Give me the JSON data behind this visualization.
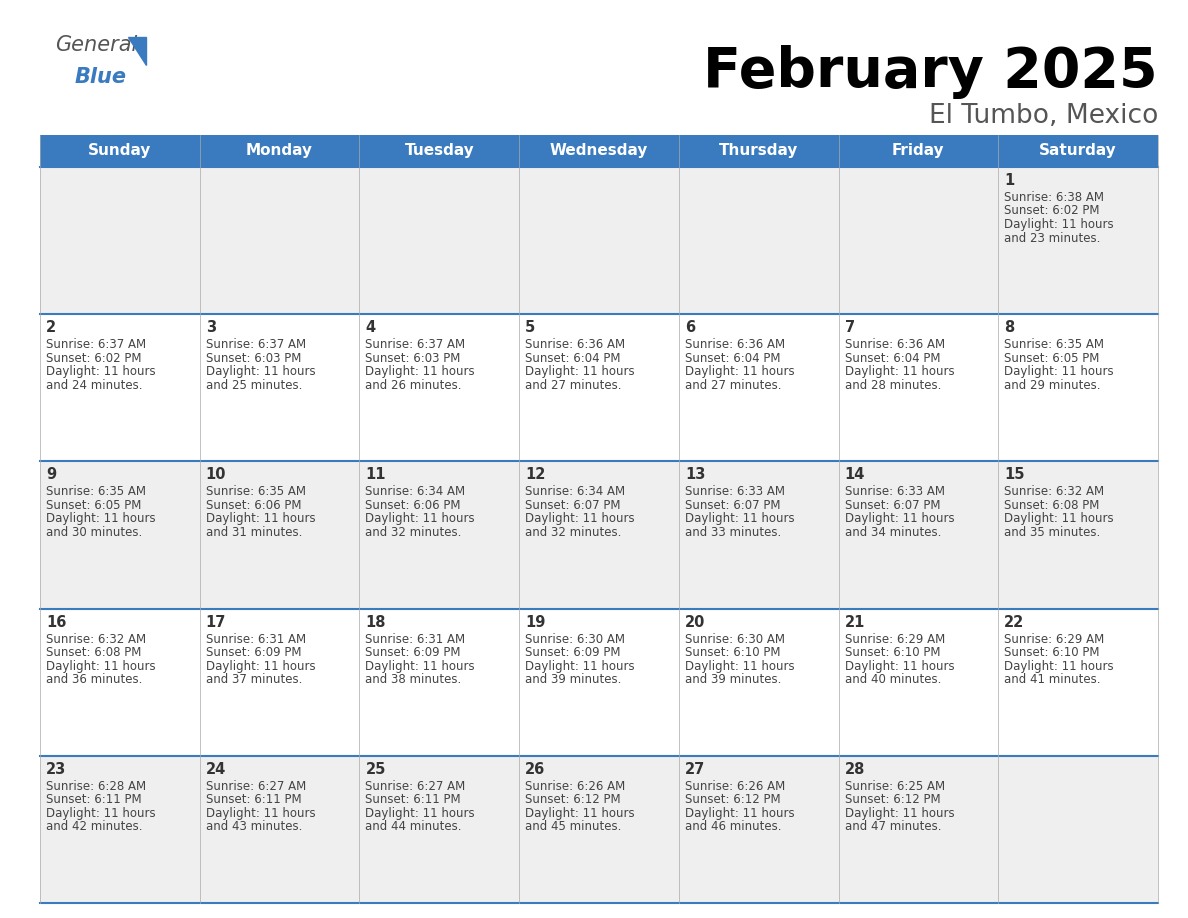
{
  "title": "February 2025",
  "subtitle": "El Tumbo, Mexico",
  "header_bg_color": "#3a7bbf",
  "header_text_color": "#ffffff",
  "day_names": [
    "Sunday",
    "Monday",
    "Tuesday",
    "Wednesday",
    "Thursday",
    "Friday",
    "Saturday"
  ],
  "row_bg_odd": "#efefef",
  "row_bg_even": "#ffffff",
  "border_color": "#3a7bbf",
  "text_color": "#444444",
  "day_num_color": "#333333",
  "days": [
    {
      "day": 1,
      "col": 6,
      "row": 0,
      "sunrise": "6:38 AM",
      "sunset": "6:02 PM",
      "daylight_hours": 11,
      "daylight_minutes": 23
    },
    {
      "day": 2,
      "col": 0,
      "row": 1,
      "sunrise": "6:37 AM",
      "sunset": "6:02 PM",
      "daylight_hours": 11,
      "daylight_minutes": 24
    },
    {
      "day": 3,
      "col": 1,
      "row": 1,
      "sunrise": "6:37 AM",
      "sunset": "6:03 PM",
      "daylight_hours": 11,
      "daylight_minutes": 25
    },
    {
      "day": 4,
      "col": 2,
      "row": 1,
      "sunrise": "6:37 AM",
      "sunset": "6:03 PM",
      "daylight_hours": 11,
      "daylight_minutes": 26
    },
    {
      "day": 5,
      "col": 3,
      "row": 1,
      "sunrise": "6:36 AM",
      "sunset": "6:04 PM",
      "daylight_hours": 11,
      "daylight_minutes": 27
    },
    {
      "day": 6,
      "col": 4,
      "row": 1,
      "sunrise": "6:36 AM",
      "sunset": "6:04 PM",
      "daylight_hours": 11,
      "daylight_minutes": 27
    },
    {
      "day": 7,
      "col": 5,
      "row": 1,
      "sunrise": "6:36 AM",
      "sunset": "6:04 PM",
      "daylight_hours": 11,
      "daylight_minutes": 28
    },
    {
      "day": 8,
      "col": 6,
      "row": 1,
      "sunrise": "6:35 AM",
      "sunset": "6:05 PM",
      "daylight_hours": 11,
      "daylight_minutes": 29
    },
    {
      "day": 9,
      "col": 0,
      "row": 2,
      "sunrise": "6:35 AM",
      "sunset": "6:05 PM",
      "daylight_hours": 11,
      "daylight_minutes": 30
    },
    {
      "day": 10,
      "col": 1,
      "row": 2,
      "sunrise": "6:35 AM",
      "sunset": "6:06 PM",
      "daylight_hours": 11,
      "daylight_minutes": 31
    },
    {
      "day": 11,
      "col": 2,
      "row": 2,
      "sunrise": "6:34 AM",
      "sunset": "6:06 PM",
      "daylight_hours": 11,
      "daylight_minutes": 32
    },
    {
      "day": 12,
      "col": 3,
      "row": 2,
      "sunrise": "6:34 AM",
      "sunset": "6:07 PM",
      "daylight_hours": 11,
      "daylight_minutes": 32
    },
    {
      "day": 13,
      "col": 4,
      "row": 2,
      "sunrise": "6:33 AM",
      "sunset": "6:07 PM",
      "daylight_hours": 11,
      "daylight_minutes": 33
    },
    {
      "day": 14,
      "col": 5,
      "row": 2,
      "sunrise": "6:33 AM",
      "sunset": "6:07 PM",
      "daylight_hours": 11,
      "daylight_minutes": 34
    },
    {
      "day": 15,
      "col": 6,
      "row": 2,
      "sunrise": "6:32 AM",
      "sunset": "6:08 PM",
      "daylight_hours": 11,
      "daylight_minutes": 35
    },
    {
      "day": 16,
      "col": 0,
      "row": 3,
      "sunrise": "6:32 AM",
      "sunset": "6:08 PM",
      "daylight_hours": 11,
      "daylight_minutes": 36
    },
    {
      "day": 17,
      "col": 1,
      "row": 3,
      "sunrise": "6:31 AM",
      "sunset": "6:09 PM",
      "daylight_hours": 11,
      "daylight_minutes": 37
    },
    {
      "day": 18,
      "col": 2,
      "row": 3,
      "sunrise": "6:31 AM",
      "sunset": "6:09 PM",
      "daylight_hours": 11,
      "daylight_minutes": 38
    },
    {
      "day": 19,
      "col": 3,
      "row": 3,
      "sunrise": "6:30 AM",
      "sunset": "6:09 PM",
      "daylight_hours": 11,
      "daylight_minutes": 39
    },
    {
      "day": 20,
      "col": 4,
      "row": 3,
      "sunrise": "6:30 AM",
      "sunset": "6:10 PM",
      "daylight_hours": 11,
      "daylight_minutes": 39
    },
    {
      "day": 21,
      "col": 5,
      "row": 3,
      "sunrise": "6:29 AM",
      "sunset": "6:10 PM",
      "daylight_hours": 11,
      "daylight_minutes": 40
    },
    {
      "day": 22,
      "col": 6,
      "row": 3,
      "sunrise": "6:29 AM",
      "sunset": "6:10 PM",
      "daylight_hours": 11,
      "daylight_minutes": 41
    },
    {
      "day": 23,
      "col": 0,
      "row": 4,
      "sunrise": "6:28 AM",
      "sunset": "6:11 PM",
      "daylight_hours": 11,
      "daylight_minutes": 42
    },
    {
      "day": 24,
      "col": 1,
      "row": 4,
      "sunrise": "6:27 AM",
      "sunset": "6:11 PM",
      "daylight_hours": 11,
      "daylight_minutes": 43
    },
    {
      "day": 25,
      "col": 2,
      "row": 4,
      "sunrise": "6:27 AM",
      "sunset": "6:11 PM",
      "daylight_hours": 11,
      "daylight_minutes": 44
    },
    {
      "day": 26,
      "col": 3,
      "row": 4,
      "sunrise": "6:26 AM",
      "sunset": "6:12 PM",
      "daylight_hours": 11,
      "daylight_minutes": 45
    },
    {
      "day": 27,
      "col": 4,
      "row": 4,
      "sunrise": "6:26 AM",
      "sunset": "6:12 PM",
      "daylight_hours": 11,
      "daylight_minutes": 46
    },
    {
      "day": 28,
      "col": 5,
      "row": 4,
      "sunrise": "6:25 AM",
      "sunset": "6:12 PM",
      "daylight_hours": 11,
      "daylight_minutes": 47
    }
  ],
  "num_rows": 5,
  "num_cols": 7,
  "fig_width": 11.88,
  "fig_height": 9.18,
  "dpi": 100
}
